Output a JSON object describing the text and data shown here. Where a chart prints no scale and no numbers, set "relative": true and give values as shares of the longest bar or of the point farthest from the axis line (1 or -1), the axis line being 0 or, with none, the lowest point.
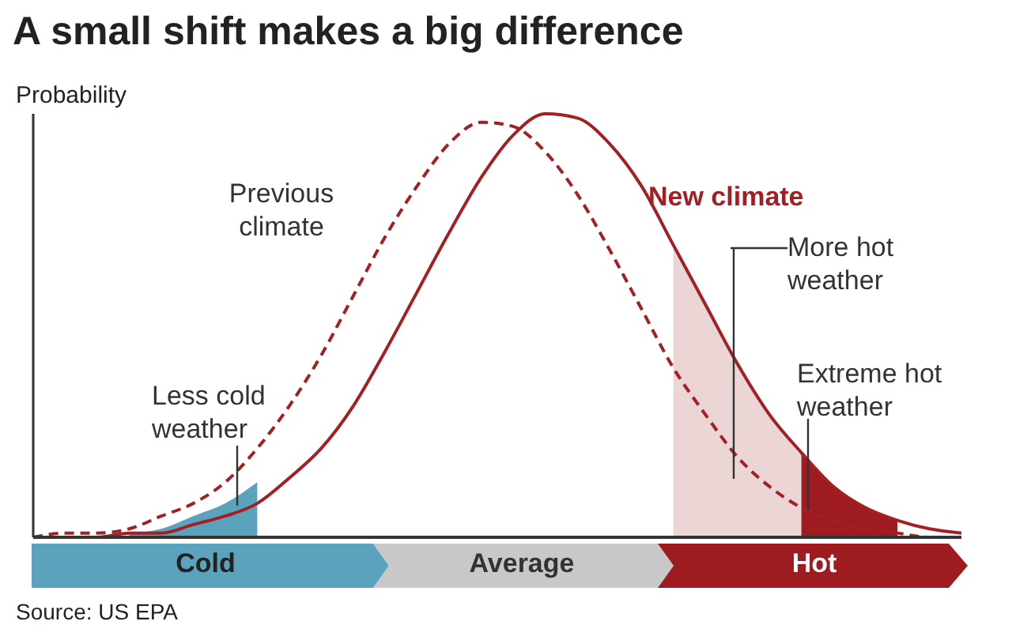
{
  "chart_data": {
    "type": "line",
    "title": "A small shift makes a big difference",
    "ylabel": "Probability",
    "relative": true,
    "legend": false,
    "grid": false,
    "marker": "none",
    "categories": [
      null,
      null,
      null,
      null,
      null,
      null,
      null,
      null,
      null,
      null,
      null,
      null,
      null,
      null,
      null,
      null,
      null,
      null,
      null,
      null,
      null,
      null,
      null,
      null,
      null,
      null,
      null,
      null,
      null,
      null
    ],
    "series": [
      {
        "name": "Less cold weather",
        "type": "area",
        "color": "#5ba3bd",
        "values": [
          null,
          null,
          null,
          0.01,
          0.02,
          0.05,
          0.08,
          0.13,
          null,
          null,
          null,
          null,
          null,
          null,
          null,
          null,
          null,
          null,
          null,
          null,
          null,
          null,
          null,
          null,
          null,
          null,
          null,
          null,
          null,
          null
        ]
      },
      {
        "name": "More hot weather",
        "type": "area",
        "color": "#ecd5d5",
        "values": [
          null,
          null,
          null,
          null,
          null,
          null,
          null,
          null,
          null,
          null,
          null,
          null,
          null,
          null,
          null,
          null,
          null,
          null,
          null,
          null,
          0.69,
          0.55,
          0.41,
          0.29,
          0.2,
          null,
          null,
          null,
          null,
          null
        ]
      },
      {
        "name": "Extreme hot weather",
        "type": "area",
        "color": "#9e1b1f",
        "values": [
          null,
          null,
          null,
          null,
          null,
          null,
          null,
          null,
          null,
          null,
          null,
          null,
          null,
          null,
          null,
          null,
          null,
          null,
          null,
          null,
          null,
          null,
          null,
          null,
          0.2,
          0.12,
          0.07,
          0.04,
          null,
          null
        ]
      },
      {
        "name": "Previous climate",
        "type": "line",
        "color": "#a31f24",
        "line_style": "dashed",
        "values": [
          0,
          0.01,
          0.01,
          0.02,
          0.05,
          0.08,
          0.13,
          0.21,
          0.31,
          0.43,
          0.57,
          0.71,
          0.83,
          0.93,
          0.98,
          0.97,
          0.91,
          0.81,
          0.68,
          0.54,
          0.4,
          0.29,
          0.19,
          0.12,
          0.07,
          0.04,
          0.02,
          0.01,
          0,
          0
        ]
      },
      {
        "name": "New climate",
        "type": "line",
        "color": "#a31f24",
        "line_style": "solid",
        "values": [
          0,
          0,
          0,
          0.01,
          0.01,
          0.03,
          0.05,
          0.08,
          0.14,
          0.21,
          0.31,
          0.44,
          0.58,
          0.72,
          0.85,
          0.95,
          1,
          0.99,
          0.93,
          0.83,
          0.69,
          0.55,
          0.41,
          0.29,
          0.2,
          0.12,
          0.07,
          0.04,
          0.02,
          0.01
        ]
      }
    ],
    "annotations": [
      "Cold",
      "Average",
      "Hot",
      "Source: US EPA"
    ]
  }
}
